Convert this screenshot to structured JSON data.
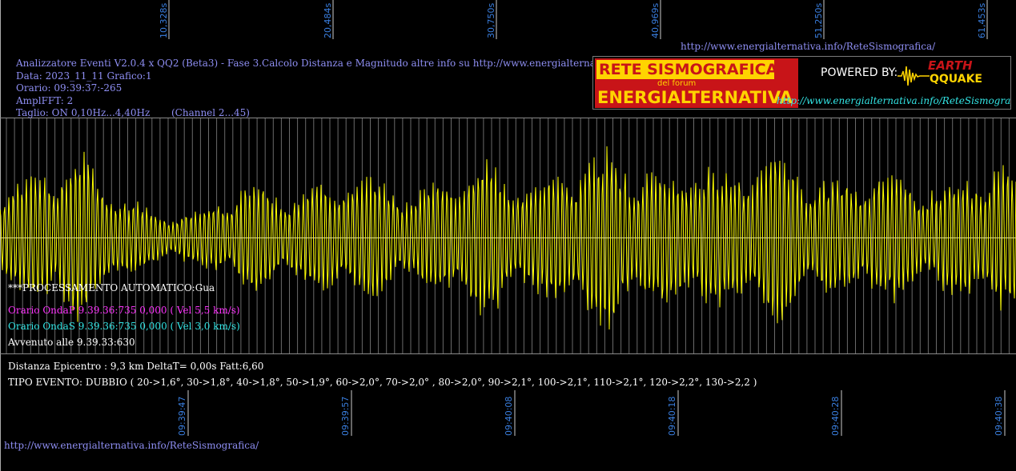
{
  "chart_data": {
    "type": "line",
    "title": "",
    "xlabel": "",
    "ylabel": "",
    "top_axis_ticks": [
      "10,328s",
      "20,484s",
      "30,750s",
      "40,969s",
      "51,250s",
      "61,453s"
    ],
    "bottom_axis_ticks": [
      "09:39:47",
      "09:39:57",
      "09:40:08",
      "09:40:18",
      "09:40:28",
      "09:40:38"
    ],
    "grid": true,
    "series": [
      {
        "color": "#ffff00",
        "x_range_s": [
          0,
          62.5
        ],
        "approx_peak_amplitude": 1.0,
        "description_values": [
          0.55,
          0.62,
          0.8,
          0.9,
          0.7,
          0.45,
          0.3,
          0.25,
          0.3,
          0.45,
          0.6,
          0.55,
          0.5,
          0.6,
          0.7,
          0.65,
          0.55,
          0.5,
          0.7,
          0.85,
          0.75,
          0.65,
          0.6,
          0.8,
          0.95,
          0.9,
          0.75,
          0.7,
          0.85,
          0.7,
          0.8,
          0.95,
          0.85,
          0.65,
          0.55,
          0.7,
          0.65,
          0.6,
          0.55,
          0.7,
          0.8,
          0.75
        ]
      }
    ]
  },
  "header": {
    "line1": "Analizzatore Eventi V2.0.4 x QQ2 (Beta3) - Fase 3.Calcolo Distanza e Magnitudo altre info su http://www.energialternativa.info/ReteSism",
    "line2": "Data: 2023_11_11 Grafico:1",
    "line3": "Orario: 09:39:37:-265",
    "line4": "AmplFFT: 2",
    "line5": "Taglio: ON 0,10Hz...4,40Hz       (Channel 2...45)"
  },
  "top_url": "http://www.energialternativa.info/ReteSismografica/",
  "banner": {
    "title1": "RETE SISMOGRAFICA",
    "title2": "del forum",
    "title3": "ENERGIALTERNATIVA",
    "powered": "POWERED BY:",
    "eq1": "EARTH",
    "eq2": "QQUAKE",
    "url": "http://www.energialternativa.info/ReteSismografica"
  },
  "info": {
    "processing": "***PROCESSAMENTO AUTOMATICO:Gua",
    "onda_p": "Orario OndaP 9.39.36:735  0,000 ( Vel 5,5 km/s)",
    "onda_s": "Orario OndaS 9.39.36:735  0,000 ( Vel 3,0 km/s)",
    "avvenuto": "Avvenuto alle 9.39.33:630",
    "distanza": "Distanza Epicentro : 9,3 km DeltaT= 0,00s  Fatt:6,60",
    "tipo": "TIPO EVENTO: DUBBIO ( 20->1,6°, 30->1,8°, 40->1,8°, 50->1,9°, 60->2,0°, 70->2,0° , 80->2,0°, 90->2,1°, 100->2,1°, 110->2,1°, 120->2,2°, 130->2,2 )"
  },
  "bottom_url": "http://www.energialternativa.info/ReteSismografica/",
  "colors": {
    "background": "#000000",
    "trace": "#ffff00",
    "grid": "#6a6a6a",
    "tick_label": "#3a7fe0",
    "header_text": "#8e8ef2"
  }
}
